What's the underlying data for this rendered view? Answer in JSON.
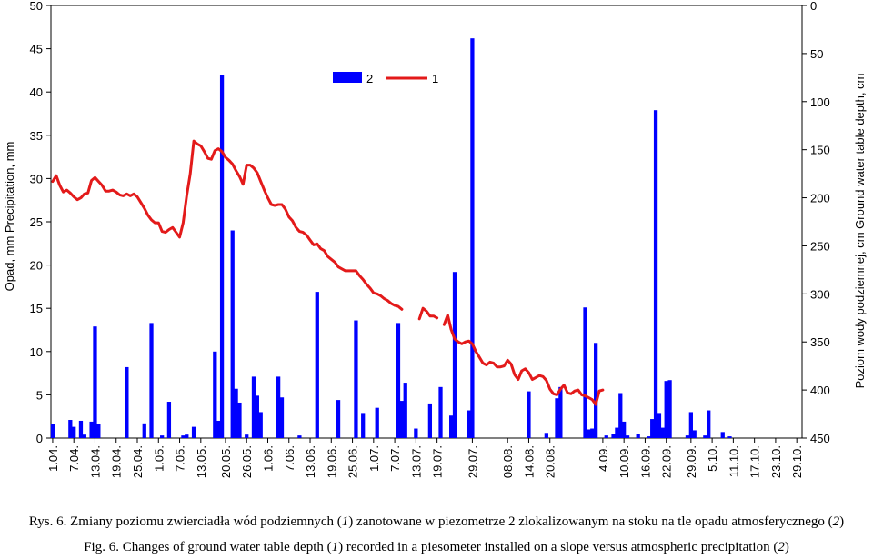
{
  "chart_data": {
    "type": "bar+line",
    "ylabel_left": "Opad, mm  Precipitation, mm",
    "ylabel_right": "Poziom wody podziemnej, cm   Ground water table depth, cm",
    "y_left_ticks": [
      "0",
      "5",
      "10",
      "15",
      "20",
      "25",
      "30",
      "35",
      "40",
      "45",
      "50"
    ],
    "y_right_ticks": [
      "0",
      "50",
      "100",
      "150",
      "200",
      "250",
      "300",
      "350",
      "400",
      "450"
    ],
    "ylim_left": [
      0,
      50
    ],
    "ylim_right": [
      450,
      0
    ],
    "x_labels": [
      "1.04.",
      "7.04.",
      "13.04.",
      "19.04.",
      "25.04.",
      "1.05.",
      "7.05.",
      "13.05.",
      "20.05.",
      "26.05.",
      "1.06.",
      "7.06.",
      "13.06.",
      "19.06.",
      "25.06.",
      "1.07.",
      "7.07.",
      "13.07.",
      "19.07.",
      "29.07.",
      "08.08.",
      "14.08.",
      "20.08.",
      "4.09.",
      "10.09.",
      "16.09.",
      "22.09.",
      "29.09.",
      "5.10.",
      "11.10.",
      "17.10.",
      "23.10.",
      "29.10."
    ],
    "legend": [
      {
        "key": "bars",
        "label": "2"
      },
      {
        "key": "line",
        "label": "1"
      }
    ],
    "colors": {
      "bars": "#0000ff",
      "line": "#e31a1a"
    },
    "x_label_index": [
      0,
      6,
      12,
      18,
      24,
      30,
      36,
      42,
      49,
      55,
      61,
      67,
      73,
      79,
      85,
      91,
      97,
      103,
      109,
      119,
      129,
      135,
      141,
      156,
      162,
      168,
      174,
      181,
      187,
      193,
      199,
      205,
      211
    ],
    "precipitation": [
      [
        0,
        1.6
      ],
      [
        5,
        2.1
      ],
      [
        6,
        1.3
      ],
      [
        8,
        2.0
      ],
      [
        9,
        0.4
      ],
      [
        11,
        1.9
      ],
      [
        12,
        12.9
      ],
      [
        13,
        1.6
      ],
      [
        21,
        8.2
      ],
      [
        26,
        1.7
      ],
      [
        28,
        13.3
      ],
      [
        31,
        0.3
      ],
      [
        33,
        4.2
      ],
      [
        37,
        0.3
      ],
      [
        38,
        0.4
      ],
      [
        40,
        1.3
      ],
      [
        46,
        10.0
      ],
      [
        47,
        2.0
      ],
      [
        48,
        42.0
      ],
      [
        51,
        24.0
      ],
      [
        52,
        5.7
      ],
      [
        53,
        4.1
      ],
      [
        55,
        0.4
      ],
      [
        57,
        7.1
      ],
      [
        58,
        4.9
      ],
      [
        59,
        3.0
      ],
      [
        64,
        7.1
      ],
      [
        65,
        4.7
      ],
      [
        70,
        0.3
      ],
      [
        75,
        16.9
      ],
      [
        81,
        4.4
      ],
      [
        86,
        13.6
      ],
      [
        88,
        2.9
      ],
      [
        92,
        3.5
      ],
      [
        98,
        13.3
      ],
      [
        99,
        4.3
      ],
      [
        100,
        6.4
      ],
      [
        103,
        1.1
      ],
      [
        107,
        4.0
      ],
      [
        110,
        5.9
      ],
      [
        113,
        2.6
      ],
      [
        114,
        19.2
      ],
      [
        118,
        3.2
      ],
      [
        119,
        46.2
      ],
      [
        135,
        5.4
      ],
      [
        140,
        0.6
      ],
      [
        143,
        4.6
      ],
      [
        144,
        5.9
      ],
      [
        151,
        15.1
      ],
      [
        152,
        1.0
      ],
      [
        153,
        1.1
      ],
      [
        154,
        11.0
      ],
      [
        157,
        0.3
      ],
      [
        159,
        0.5
      ],
      [
        160,
        1.2
      ],
      [
        161,
        5.2
      ],
      [
        162,
        1.9
      ],
      [
        163,
        0.3
      ],
      [
        166,
        0.5
      ],
      [
        169,
        0.2
      ],
      [
        170,
        2.2
      ],
      [
        171,
        37.9
      ],
      [
        172,
        2.9
      ],
      [
        173,
        1.2
      ],
      [
        174,
        6.6
      ],
      [
        175,
        6.7
      ],
      [
        180,
        0.3
      ],
      [
        181,
        3.0
      ],
      [
        182,
        0.9
      ],
      [
        185,
        0.3
      ],
      [
        186,
        3.2
      ],
      [
        190,
        0.7
      ],
      [
        192,
        0.2
      ]
    ],
    "depth_segments": [
      [
        [
          0,
          183
        ],
        [
          1,
          177
        ],
        [
          2,
          187
        ],
        [
          3,
          194
        ],
        [
          4,
          192
        ],
        [
          5,
          195
        ],
        [
          6,
          199
        ],
        [
          7,
          202
        ],
        [
          8,
          200
        ],
        [
          9,
          196
        ],
        [
          10,
          195
        ],
        [
          11,
          182
        ],
        [
          12,
          179
        ],
        [
          13,
          183
        ],
        [
          14,
          187
        ],
        [
          15,
          193
        ],
        [
          16,
          193
        ],
        [
          17,
          192
        ],
        [
          18,
          194
        ],
        [
          19,
          197
        ],
        [
          20,
          198
        ],
        [
          21,
          196
        ],
        [
          22,
          198
        ],
        [
          23,
          196
        ],
        [
          24,
          199
        ],
        [
          25,
          205
        ],
        [
          26,
          211
        ],
        [
          27,
          218
        ],
        [
          28,
          223
        ],
        [
          29,
          226
        ],
        [
          30,
          226
        ],
        [
          31,
          235
        ],
        [
          32,
          236
        ],
        [
          33,
          233
        ],
        [
          34,
          231
        ],
        [
          35,
          236
        ],
        [
          36,
          241
        ],
        [
          37,
          226
        ],
        [
          38,
          198
        ],
        [
          39,
          175
        ],
        [
          40,
          141
        ],
        [
          41,
          144
        ],
        [
          42,
          146
        ],
        [
          43,
          152
        ],
        [
          44,
          159
        ],
        [
          45,
          160
        ],
        [
          46,
          151
        ],
        [
          47,
          149
        ],
        [
          48,
          152
        ],
        [
          49,
          158
        ],
        [
          50,
          161
        ],
        [
          51,
          165
        ],
        [
          52,
          172
        ],
        [
          53,
          178
        ],
        [
          54,
          186
        ],
        [
          55,
          166
        ],
        [
          56,
          166
        ],
        [
          57,
          169
        ],
        [
          58,
          174
        ],
        [
          59,
          183
        ],
        [
          60,
          192
        ],
        [
          61,
          200
        ],
        [
          62,
          207
        ],
        [
          63,
          208
        ],
        [
          64,
          207
        ],
        [
          65,
          207
        ],
        [
          66,
          212
        ],
        [
          67,
          220
        ],
        [
          68,
          224
        ],
        [
          69,
          231
        ],
        [
          70,
          235
        ],
        [
          71,
          236
        ],
        [
          72,
          239
        ],
        [
          73,
          244
        ],
        [
          74,
          249
        ],
        [
          75,
          248
        ],
        [
          76,
          253
        ],
        [
          77,
          255
        ],
        [
          78,
          261
        ],
        [
          79,
          264
        ],
        [
          80,
          267
        ],
        [
          81,
          272
        ],
        [
          82,
          274
        ],
        [
          83,
          276
        ],
        [
          84,
          276
        ],
        [
          85,
          276
        ],
        [
          86,
          276
        ],
        [
          87,
          281
        ],
        [
          88,
          285
        ],
        [
          89,
          290
        ],
        [
          90,
          294
        ],
        [
          91,
          299
        ],
        [
          92,
          300
        ],
        [
          93,
          302
        ],
        [
          94,
          305
        ],
        [
          95,
          307
        ],
        [
          96,
          310
        ],
        [
          97,
          312
        ],
        [
          98,
          313
        ],
        [
          99,
          316
        ]
      ],
      [
        [
          104,
          326
        ],
        [
          105,
          315
        ],
        [
          106,
          318
        ],
        [
          107,
          323
        ],
        [
          108,
          323
        ],
        [
          109,
          325
        ]
      ],
      [
        [
          111,
          332
        ],
        [
          112,
          322
        ],
        [
          113,
          337
        ],
        [
          114,
          347
        ],
        [
          115,
          350
        ],
        [
          116,
          352
        ],
        [
          117,
          350
        ],
        [
          118,
          349
        ],
        [
          119,
          352
        ],
        [
          120,
          360
        ],
        [
          121,
          366
        ],
        [
          122,
          372
        ],
        [
          123,
          374
        ],
        [
          124,
          371
        ],
        [
          125,
          372
        ],
        [
          126,
          376
        ],
        [
          127,
          376
        ],
        [
          128,
          375
        ],
        [
          129,
          369
        ],
        [
          130,
          373
        ],
        [
          131,
          384
        ],
        [
          132,
          389
        ],
        [
          133,
          380
        ],
        [
          134,
          378
        ],
        [
          135,
          382
        ],
        [
          136,
          389
        ],
        [
          137,
          387
        ],
        [
          138,
          385
        ],
        [
          139,
          386
        ],
        [
          140,
          390
        ],
        [
          141,
          399
        ],
        [
          142,
          404
        ],
        [
          143,
          405
        ],
        [
          144,
          399
        ],
        [
          145,
          395
        ],
        [
          146,
          403
        ],
        [
          147,
          404
        ],
        [
          148,
          401
        ],
        [
          149,
          400
        ],
        [
          150,
          405
        ],
        [
          151,
          406
        ],
        [
          152,
          408
        ],
        [
          153,
          410
        ],
        [
          154,
          415
        ],
        [
          155,
          401
        ],
        [
          156,
          400
        ]
      ]
    ]
  },
  "captions": {
    "pl_prefix": "Rys. 6. Zmiany poziomu zwierciadła wód podziemnych (",
    "pl_m1": "1",
    "pl_mid": ") zanotowane w piezometrze 2 zlokalizowanym na stoku na tle opadu atmosferycznego (",
    "pl_m2": "2",
    "pl_suffix": ")",
    "en_prefix": "Fig. 6. Changes of ground water table depth (",
    "en_m1": "1",
    "en_mid": ") recorded in a piesometer installed on a slope versus atmospheric precipitation (",
    "en_m2": "2",
    "en_suffix": ")"
  }
}
